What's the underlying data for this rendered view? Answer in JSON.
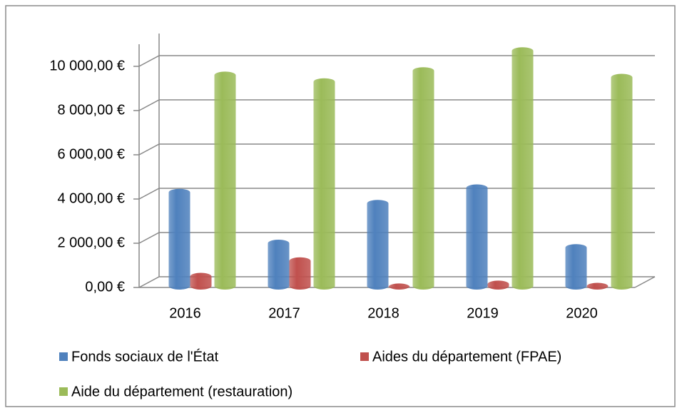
{
  "chart_data": {
    "type": "bar3d",
    "categories": [
      "2016",
      "2017",
      "2018",
      "2019",
      "2020"
    ],
    "series": [
      {
        "name": "Fonds sociaux de l'État",
        "color": "#4f81bd",
        "values": [
          4300,
          2000,
          3800,
          4500,
          1800
        ]
      },
      {
        "name": "Aides du département (FPAE)",
        "color": "#c0504d",
        "values": [
          500,
          1200,
          20,
          150,
          50
        ]
      },
      {
        "name": "Aide du département (restauration)",
        "color": "#9bbb59",
        "values": [
          9600,
          9300,
          9800,
          10700,
          9500
        ]
      }
    ],
    "ylim": [
      0,
      11000
    ],
    "yticks": [
      {
        "value": 0,
        "label": "0,00 €"
      },
      {
        "value": 2000,
        "label": "2 000,00 €"
      },
      {
        "value": 4000,
        "label": "4 000,00 €"
      },
      {
        "value": 6000,
        "label": "6 000,00 €"
      },
      {
        "value": 8000,
        "label": "8 000,00 €"
      },
      {
        "value": 10000,
        "label": "10 000,00 €"
      }
    ],
    "grid": true,
    "legend": "bottom"
  }
}
